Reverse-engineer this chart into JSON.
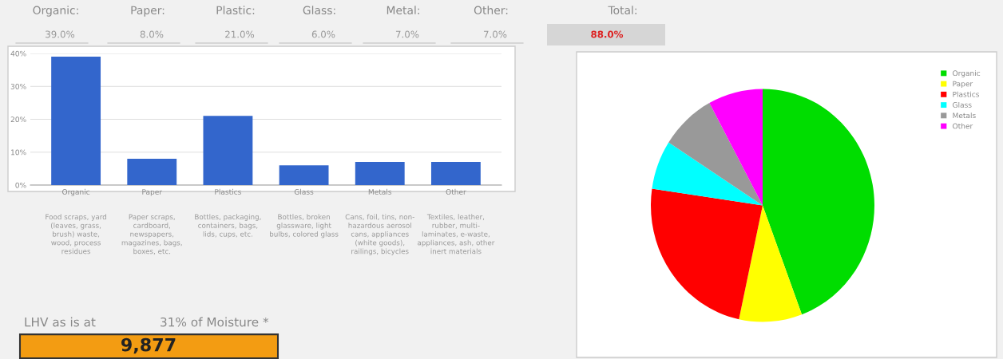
{
  "chart_data": [
    {
      "type": "other",
      "annotations": [
        "Organic:",
        "39.0%",
        "Paper:",
        "8.0%",
        "Plastic:",
        "21.0%",
        "Glass:",
        "6.0%",
        "Metal:",
        "7.0%",
        "Other:",
        "7.0%",
        "Total:",
        "88.0%"
      ]
    },
    {
      "type": "bar",
      "categories": [
        "Organic",
        "Paper",
        "Plastics",
        "Glass",
        "Metals",
        "Other"
      ],
      "values": [
        39,
        8,
        21,
        6,
        7,
        7
      ],
      "color": "#3366cc",
      "ylim": [
        0,
        40
      ],
      "yticks": [
        {
          "value": 0,
          "label": "0%"
        },
        {
          "value": 10,
          "label": "10%"
        },
        {
          "value": 20,
          "label": "20%"
        },
        {
          "value": 30,
          "label": "30%"
        },
        {
          "value": 40,
          "label": "40%"
        }
      ],
      "grid": "y",
      "annotations": [
        "Food scraps, yard\n(leaves, grass,\nbrush) waste,\nwood, process\nresidues",
        "Paper scraps,\ncardboard,\nnewspapers,\nmagazines, bags,\nboxes, etc.",
        "Bottles, packaging,\ncontainers, bags,\nlids, cups, etc.",
        "Bottles, broken\nglassware, light\nbulbs, colored glass",
        "Cans, foil, tins, non-\nhazardous aerosol\ncans, appliances\n(white goods),\nrailings, bicycles",
        "Textiles, leather,\nrubber, multi-\nlaminates, e-waste,\nappliances, ash, other\ninert materials"
      ]
    },
    {
      "type": "pie",
      "categories": [
        "Organic",
        "Paper",
        "Plastics",
        "Glass",
        "Metals",
        "Other"
      ],
      "values": [
        44.3,
        9.1,
        23.9,
        6.8,
        8.0,
        7.9
      ],
      "colors": [
        "#00dd00",
        "#ffff00",
        "#ff0000",
        "#00ffff",
        "#999999",
        "#ff00ff"
      ],
      "legend": "top right"
    },
    {
      "type": "other",
      "annotations": [
        "LHV as is at",
        "31% of Moisture *",
        "9,877"
      ]
    }
  ]
}
